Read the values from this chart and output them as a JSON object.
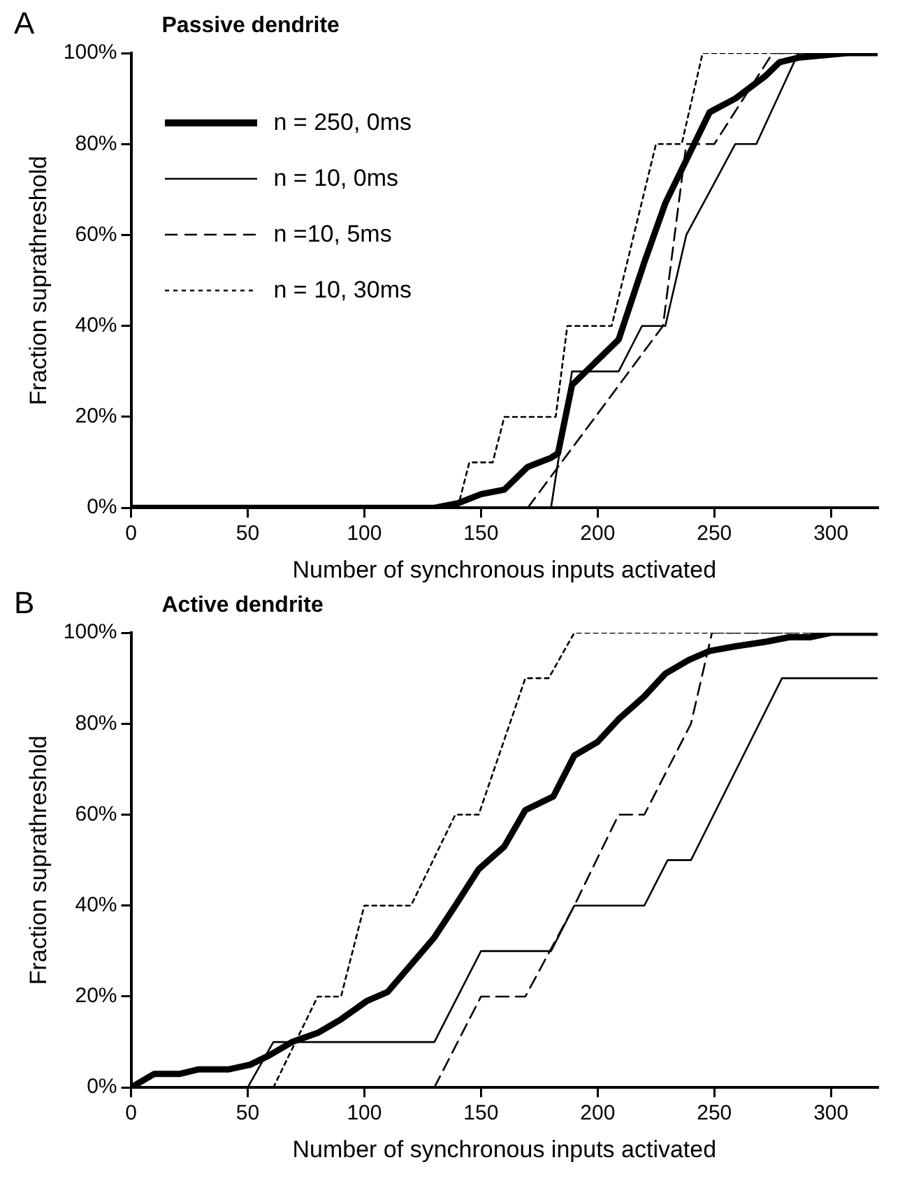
{
  "chart_data": [
    {
      "type": "line",
      "title": "Passive dendrite",
      "xlabel": "Number of synchronous inputs activated",
      "ylabel": "Fraction suprathreshold",
      "annotations": [
        "A"
      ],
      "xlim": [
        0,
        320
      ],
      "xticks": [
        0,
        50,
        100,
        150,
        200,
        250,
        300
      ],
      "ylim": [
        0,
        100
      ],
      "yticks": [
        {
          "value": 0,
          "label": "0%"
        },
        {
          "value": 20,
          "label": "20%"
        },
        {
          "value": 40,
          "label": "40%"
        },
        {
          "value": 60,
          "label": "60%"
        },
        {
          "value": 80,
          "label": "80%"
        },
        {
          "value": 100,
          "label": "100%"
        }
      ],
      "legend": "top left",
      "series": [
        {
          "name": "n = 250, 0ms",
          "color": "#000000",
          "line_style": "solid",
          "x": [
            0,
            130,
            140,
            150,
            160,
            170,
            180,
            183,
            189,
            209,
            220,
            229,
            248,
            259,
            272,
            278,
            286,
            307,
            320
          ],
          "values": [
            0,
            0,
            1,
            3,
            4,
            9,
            11,
            12,
            27,
            37,
            54,
            67,
            87,
            90,
            95,
            98,
            99,
            100,
            100
          ]
        },
        {
          "name": "n = 10, 0ms",
          "color": "#000000",
          "line_style": "solid",
          "x": [
            0,
            180,
            189,
            209,
            219,
            229,
            238,
            259,
            268,
            286,
            320
          ],
          "values": [
            0,
            0,
            30,
            30,
            40,
            40,
            60,
            80,
            80,
            100,
            100
          ]
        },
        {
          "name": "n =10, 5ms",
          "color": "#000000",
          "line_style": "dashed",
          "x": [
            170,
            228,
            238,
            250,
            275,
            320
          ],
          "values": [
            0,
            40,
            80,
            80,
            100,
            100
          ]
        },
        {
          "name": "n = 10, 30ms",
          "color": "#000000",
          "line_style": "dotted",
          "x": [
            140,
            145,
            155,
            160,
            182,
            187,
            206,
            225,
            236,
            245,
            320
          ],
          "values": [
            0,
            10,
            10,
            20,
            20,
            40,
            40,
            80,
            80,
            100,
            100
          ]
        }
      ]
    },
    {
      "type": "line",
      "title": "Active dendrite",
      "xlabel": "Number of synchronous inputs activated",
      "ylabel": "Fraction suprathreshold",
      "annotations": [
        "B"
      ],
      "xlim": [
        0,
        320
      ],
      "xticks": [
        0,
        50,
        100,
        150,
        200,
        250,
        300
      ],
      "ylim": [
        0,
        100
      ],
      "yticks": [
        {
          "value": 0,
          "label": "0%"
        },
        {
          "value": 20,
          "label": "20%"
        },
        {
          "value": 40,
          "label": "40%"
        },
        {
          "value": 60,
          "label": "60%"
        },
        {
          "value": 80,
          "label": "80%"
        },
        {
          "value": 100,
          "label": "100%"
        }
      ],
      "series": [
        {
          "color": "#000000",
          "line_style": "solid",
          "x": [
            0,
            10,
            21,
            29,
            42,
            51,
            59,
            69,
            80,
            90,
            101,
            110,
            120,
            130,
            139,
            149,
            160,
            169,
            181,
            190,
            200,
            209,
            220,
            229,
            239,
            248,
            259,
            272,
            282,
            291,
            300,
            320
          ],
          "values": [
            0,
            3,
            3,
            4,
            4,
            5,
            7,
            10,
            12,
            15,
            19,
            21,
            27,
            33,
            40,
            48,
            53,
            61,
            64,
            73,
            76,
            81,
            86,
            91,
            94,
            96,
            97,
            98,
            99,
            99,
            100,
            100
          ]
        },
        {
          "color": "#000000",
          "line_style": "solid",
          "x": [
            50,
            61,
            130,
            150,
            180,
            190,
            220,
            230,
            240,
            279,
            320
          ],
          "values": [
            0,
            10,
            10,
            30,
            30,
            40,
            40,
            50,
            50,
            90,
            90
          ]
        },
        {
          "color": "#000000",
          "line_style": "dashed",
          "x": [
            130,
            150,
            169,
            190,
            209,
            220,
            240,
            249,
            320
          ],
          "values": [
            0,
            20,
            20,
            40,
            60,
            60,
            80,
            100,
            100
          ]
        },
        {
          "color": "#000000",
          "line_style": "dotted",
          "x": [
            61,
            80,
            90,
            100,
            120,
            139,
            149,
            169,
            179,
            190,
            320
          ],
          "values": [
            0,
            20,
            20,
            40,
            40,
            60,
            60,
            90,
            90,
            100,
            100
          ]
        }
      ]
    }
  ]
}
